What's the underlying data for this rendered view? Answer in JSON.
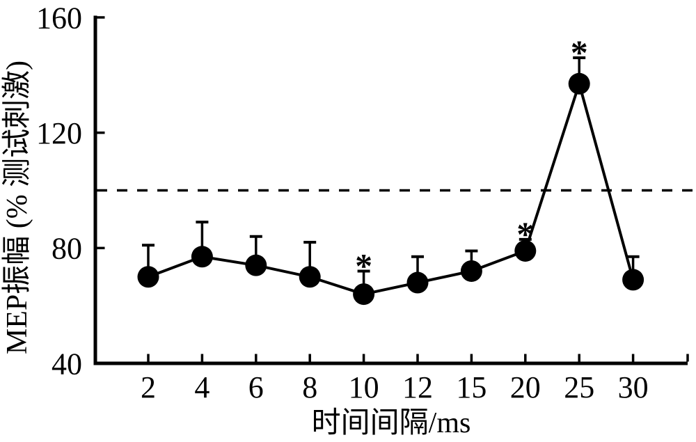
{
  "figure": {
    "background": "#ffffff",
    "ink": "#000000"
  },
  "chart_data": {
    "type": "line",
    "title": "",
    "xlabel": "时间间隔/ms",
    "ylabel": "MEP振幅 (% 测试刺激)",
    "categories": [
      "2",
      "4",
      "6",
      "8",
      "10",
      "12",
      "15",
      "20",
      "25",
      "30"
    ],
    "series": [
      {
        "name": "MEP振幅",
        "values": [
          70,
          77,
          74,
          70,
          64,
          68,
          72,
          79,
          137,
          69
        ],
        "upper_errors": [
          11,
          12,
          10,
          12,
          8,
          9,
          7,
          4,
          9,
          8
        ],
        "significant_indices": [
          4,
          7,
          8
        ]
      }
    ],
    "significance_marker": "*",
    "y_ticks": [
      40,
      80,
      120,
      160
    ],
    "ylim": [
      40,
      160
    ],
    "reference_line": {
      "value": 100,
      "style": "dashed"
    },
    "grid": false,
    "legend": "none",
    "marker": {
      "shape": "filled-circle",
      "color": "#000000",
      "error_bars": "upper-only"
    }
  }
}
